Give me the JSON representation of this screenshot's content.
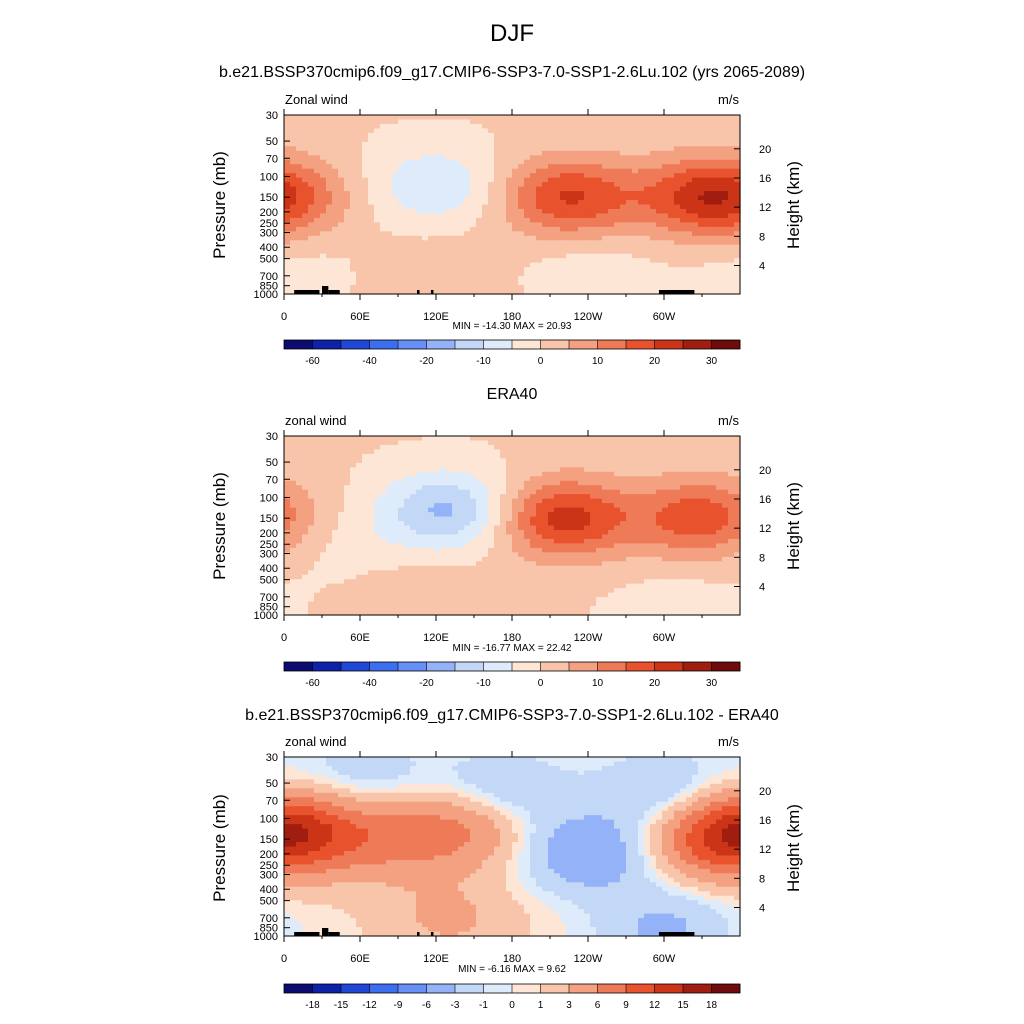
{
  "page": {
    "title": "DJF"
  },
  "chart_data": [
    {
      "type": "heatmap",
      "title": "b.e21.BSSP370cmip6.f09_g17.CMIP6-SSP3-7.0-SSP1-2.6Lu.102 (yrs 2065-2089)",
      "left_label": "Zonal wind",
      "right_label": "m/s",
      "ylabel": "Pressure (mb)",
      "y2label": "Height (km)",
      "pressure_ticks": [
        "30",
        "50",
        "70",
        "100",
        "150",
        "200",
        "250",
        "300",
        "400",
        "500",
        "700",
        "850",
        "1000"
      ],
      "height_ticks": [
        "4",
        "8",
        "12",
        "16",
        "20"
      ],
      "x_ticks": [
        "0",
        "60E",
        "120E",
        "180",
        "120W",
        "60W"
      ],
      "stats": "MIN = -14.30  MAX =  20.93",
      "colorbar_labels": [
        "-60",
        "-40",
        "-20",
        "-10",
        "0",
        "10",
        "20",
        "30"
      ],
      "min": -14.3,
      "max": 20.93,
      "features": [
        {
          "lon": 120,
          "p": 120,
          "value": -10
        },
        {
          "lon": 225,
          "p": 150,
          "value": 20
        },
        {
          "lon": 335,
          "p": 150,
          "value": 21
        },
        {
          "lon": 10,
          "p": 150,
          "value": 6
        },
        {
          "lon": 120,
          "p": 800,
          "value": 4
        },
        {
          "lon": 240,
          "p": 700,
          "value": -4
        },
        {
          "lon": 10,
          "p": 700,
          "value": -3
        }
      ]
    },
    {
      "type": "heatmap",
      "title": "ERA40",
      "left_label": "zonal wind",
      "right_label": "m/s",
      "ylabel": "Pressure (mb)",
      "y2label": "Height (km)",
      "pressure_ticks": [
        "30",
        "50",
        "70",
        "100",
        "150",
        "200",
        "250",
        "300",
        "400",
        "500",
        "700",
        "850",
        "1000"
      ],
      "height_ticks": [
        "4",
        "8",
        "12",
        "16",
        "20"
      ],
      "x_ticks": [
        "0",
        "60E",
        "120E",
        "180",
        "120W",
        "60W"
      ],
      "stats": "MIN = -16.77  MAX =  22.42",
      "colorbar_labels": [
        "-60",
        "-40",
        "-20",
        "-10",
        "0",
        "10",
        "20",
        "30"
      ],
      "min": -16.77,
      "max": 22.42,
      "features": [
        {
          "lon": 130,
          "p": 130,
          "value": -17
        },
        {
          "lon": 220,
          "p": 150,
          "value": 22
        },
        {
          "lon": 330,
          "p": 150,
          "value": 18
        },
        {
          "lon": 40,
          "p": 250,
          "value": -3
        },
        {
          "lon": 110,
          "p": 800,
          "value": 4
        },
        {
          "lon": 310,
          "p": 850,
          "value": -3
        }
      ]
    },
    {
      "type": "heatmap",
      "title": "b.e21.BSSP370cmip6.f09_g17.CMIP6-SSP3-7.0-SSP1-2.6Lu.102 - ERA40",
      "left_label": "zonal wind",
      "right_label": "m/s",
      "ylabel": "Pressure (mb)",
      "y2label": "Height (km)",
      "pressure_ticks": [
        "30",
        "50",
        "70",
        "100",
        "150",
        "200",
        "250",
        "300",
        "400",
        "500",
        "700",
        "850",
        "1000"
      ],
      "height_ticks": [
        "4",
        "8",
        "12",
        "16",
        "20"
      ],
      "x_ticks": [
        "0",
        "60E",
        "120E",
        "180",
        "120W",
        "60W"
      ],
      "stats": "MIN = -6.16  MAX =   9.62",
      "colorbar_labels": [
        "-18",
        "-15",
        "-12",
        "-9",
        "-6",
        "-3",
        "-1",
        "0",
        "1",
        "3",
        "6",
        "9",
        "12",
        "15",
        "18"
      ],
      "min": -6.16,
      "max": 9.62,
      "features": [
        {
          "lon": 240,
          "p": 200,
          "value": -6
        },
        {
          "lon": 345,
          "p": 150,
          "value": 9
        },
        {
          "lon": 10,
          "p": 120,
          "value": 8
        },
        {
          "lon": 140,
          "p": 120,
          "value": 6
        },
        {
          "lon": 80,
          "p": 150,
          "value": 5
        },
        {
          "lon": 170,
          "p": 60,
          "value": -4
        },
        {
          "lon": 300,
          "p": 60,
          "value": -4
        },
        {
          "lon": 60,
          "p": 45,
          "value": -3
        },
        {
          "lon": 300,
          "p": 850,
          "value": -4
        },
        {
          "lon": 130,
          "p": 700,
          "value": 3
        }
      ]
    }
  ]
}
